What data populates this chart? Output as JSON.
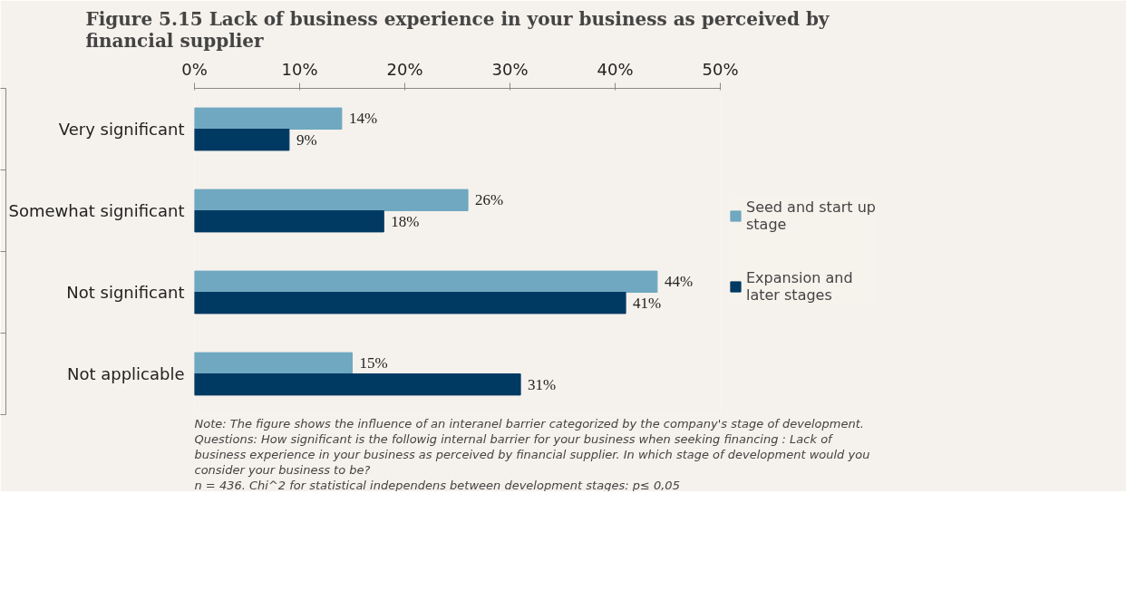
{
  "chart_data": {
    "type": "bar",
    "orientation": "horizontal",
    "title": "Figure 5.15 Lack of business experience in your business as perceived by financial supplier",
    "categories": [
      "Very significant",
      "Somewhat significant",
      "Not significant",
      "Not applicable"
    ],
    "series": [
      {
        "name": "Seed and start up stage",
        "color": "#6fa8c0",
        "values": [
          14,
          26,
          44,
          15
        ],
        "value_labels": [
          "14%",
          "26%",
          "44%",
          "15%"
        ]
      },
      {
        "name": "Expansion and later stages",
        "color": "#003a63",
        "values": [
          9,
          18,
          41,
          31
        ],
        "value_labels": [
          "9%",
          "18%",
          "41%",
          "31%"
        ]
      }
    ],
    "xlim": [
      0,
      50
    ],
    "xticks": [
      {
        "value": 0,
        "label": "0%"
      },
      {
        "value": 10,
        "label": "10%"
      },
      {
        "value": 20,
        "label": "20%"
      },
      {
        "value": 30,
        "label": "30%"
      },
      {
        "value": 40,
        "label": "40%"
      },
      {
        "value": 50,
        "label": "50%"
      }
    ],
    "grid": false,
    "legend": "right",
    "annotations": [
      "Note: The figure shows the influence of an interanel barrier categorized by the company's stage of development.",
      "Questions: How significant is the followig internal barrier for your business when seeking financing :  Lack of business experience in your business as perceived by financial supplier. In which stage of development would you consider your business to be?",
      "n = 436. Chi^2 for statistical independens between development stages: p≤ 0,05"
    ]
  }
}
